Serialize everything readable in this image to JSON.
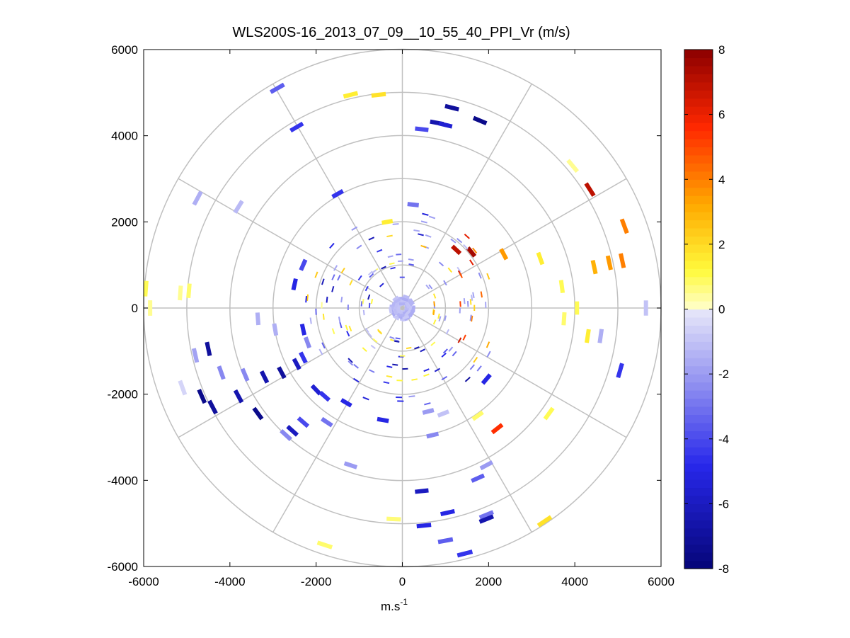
{
  "chart_data": {
    "type": "scatter",
    "subtype": "polar-ppi",
    "title": "WLS200S-16_2013_07_09__10_55_40_PPI_Vr (m/s)",
    "xlabel_base": "m.s",
    "xlabel_exp": "-1",
    "ylabel": "",
    "xlim": [
      -6000,
      6000
    ],
    "ylim": [
      -6000,
      6000
    ],
    "xticks": [
      -6000,
      -4000,
      -2000,
      0,
      2000,
      4000,
      6000
    ],
    "yticks": [
      -6000,
      -4000,
      -2000,
      0,
      2000,
      4000,
      6000
    ],
    "polar_grid": {
      "rings": [
        1000,
        2000,
        3000,
        4000,
        5000,
        6000
      ],
      "spoke_angles_deg": [
        0,
        30,
        60,
        90,
        120,
        150,
        180,
        210,
        240,
        270,
        300,
        330
      ]
    },
    "colorbar": {
      "min": -8,
      "max": 8,
      "ticks": [
        -8,
        -6,
        -4,
        -2,
        0,
        2,
        4,
        6,
        8
      ],
      "levels": 64,
      "colormap": "blue-white-yellow-red"
    },
    "points": [
      {
        "x": -2900,
        "y": 5100,
        "v": -3.5
      },
      {
        "x": -2450,
        "y": 4200,
        "v": -4.5
      },
      {
        "x": -1200,
        "y": 4950,
        "v": 1.5
      },
      {
        "x": -550,
        "y": 4950,
        "v": 1.8
      },
      {
        "x": 1150,
        "y": 4650,
        "v": -7.0
      },
      {
        "x": 1800,
        "y": 4350,
        "v": -7.5
      },
      {
        "x": 800,
        "y": 4300,
        "v": -6.5
      },
      {
        "x": 1000,
        "y": 4250,
        "v": -5.5
      },
      {
        "x": 450,
        "y": 4150,
        "v": -4.0
      },
      {
        "x": 3950,
        "y": 3300,
        "v": 0.5
      },
      {
        "x": 4350,
        "y": 2750,
        "v": 7.0
      },
      {
        "x": -4750,
        "y": 2550,
        "v": -1.5
      },
      {
        "x": -3800,
        "y": 2350,
        "v": -1.2
      },
      {
        "x": -1500,
        "y": 2650,
        "v": -4.5
      },
      {
        "x": 250,
        "y": 2400,
        "v": -3.0
      },
      {
        "x": -350,
        "y": 2000,
        "v": 1.5
      },
      {
        "x": 5150,
        "y": 1900,
        "v": 4.0
      },
      {
        "x": 5100,
        "y": 1100,
        "v": 4.0
      },
      {
        "x": 4450,
        "y": 950,
        "v": 3.0
      },
      {
        "x": 4800,
        "y": 1050,
        "v": 3.5
      },
      {
        "x": 3200,
        "y": 1150,
        "v": 1.5
      },
      {
        "x": 2350,
        "y": 1250,
        "v": 3.5
      },
      {
        "x": 1600,
        "y": 1300,
        "v": 7.5
      },
      {
        "x": 1250,
        "y": 1350,
        "v": 7.0
      },
      {
        "x": 3700,
        "y": 500,
        "v": 1.0
      },
      {
        "x": 4050,
        "y": 0,
        "v": 1.0
      },
      {
        "x": 3750,
        "y": -250,
        "v": 0.8
      },
      {
        "x": 4300,
        "y": -650,
        "v": 1.5
      },
      {
        "x": 4600,
        "y": -650,
        "v": -1.5
      },
      {
        "x": 5050,
        "y": -1450,
        "v": -4.5
      },
      {
        "x": 5650,
        "y": 0,
        "v": -1.0
      },
      {
        "x": -5950,
        "y": 450,
        "v": 1.0
      },
      {
        "x": -5850,
        "y": 0,
        "v": 0.5
      },
      {
        "x": -5150,
        "y": 350,
        "v": 0.5
      },
      {
        "x": -4950,
        "y": 400,
        "v": 0.8
      },
      {
        "x": -2300,
        "y": 1000,
        "v": -4.0
      },
      {
        "x": -2500,
        "y": 550,
        "v": -5.0
      },
      {
        "x": -3350,
        "y": -250,
        "v": -1.5
      },
      {
        "x": -2950,
        "y": -500,
        "v": -1.5
      },
      {
        "x": -2300,
        "y": -500,
        "v": -5.0
      },
      {
        "x": -2200,
        "y": -800,
        "v": -2.5
      },
      {
        "x": -4500,
        "y": -950,
        "v": -7.0
      },
      {
        "x": -4800,
        "y": -1100,
        "v": -1.8
      },
      {
        "x": -4200,
        "y": -1500,
        "v": -2.5
      },
      {
        "x": -3650,
        "y": -1550,
        "v": -2.5
      },
      {
        "x": -3200,
        "y": -1600,
        "v": -6.5
      },
      {
        "x": -2800,
        "y": -1500,
        "v": -7.0
      },
      {
        "x": -2450,
        "y": -1300,
        "v": -6.0
      },
      {
        "x": -2300,
        "y": -1150,
        "v": -4.5
      },
      {
        "x": -5100,
        "y": -1850,
        "v": -0.5
      },
      {
        "x": -4650,
        "y": -2050,
        "v": -7.5
      },
      {
        "x": -4400,
        "y": -2300,
        "v": -7.0
      },
      {
        "x": -3800,
        "y": -2050,
        "v": -6.5
      },
      {
        "x": -3350,
        "y": -2450,
        "v": -7.5
      },
      {
        "x": -2550,
        "y": -2850,
        "v": -6.0
      },
      {
        "x": -2700,
        "y": -2950,
        "v": -2.5
      },
      {
        "x": -2300,
        "y": -2650,
        "v": -4.0
      },
      {
        "x": -2000,
        "y": -1900,
        "v": -5.5
      },
      {
        "x": -1800,
        "y": -2050,
        "v": -4.5
      },
      {
        "x": -1750,
        "y": -2650,
        "v": -3.0
      },
      {
        "x": -1300,
        "y": -2200,
        "v": -5.0
      },
      {
        "x": -1200,
        "y": -3650,
        "v": -2.0
      },
      {
        "x": -450,
        "y": -2600,
        "v": -5.0
      },
      {
        "x": 600,
        "y": -2400,
        "v": -2.0
      },
      {
        "x": 950,
        "y": -2450,
        "v": -1.0
      },
      {
        "x": 700,
        "y": -2950,
        "v": -2.5
      },
      {
        "x": 1750,
        "y": -2500,
        "v": 0.8
      },
      {
        "x": 2200,
        "y": -2800,
        "v": 5.5
      },
      {
        "x": 3400,
        "y": -2450,
        "v": 1.0
      },
      {
        "x": 1950,
        "y": -1650,
        "v": -5.0
      },
      {
        "x": 1750,
        "y": -3950,
        "v": -3.5
      },
      {
        "x": 1950,
        "y": -3650,
        "v": -2.0
      },
      {
        "x": 450,
        "y": -4250,
        "v": -6.0
      },
      {
        "x": 1050,
        "y": -4750,
        "v": -5.0
      },
      {
        "x": 1950,
        "y": -4800,
        "v": -3.0
      },
      {
        "x": 1950,
        "y": -4900,
        "v": -6.5
      },
      {
        "x": 500,
        "y": -5050,
        "v": -5.0
      },
      {
        "x": -200,
        "y": -4900,
        "v": 0.7
      },
      {
        "x": 1000,
        "y": -5400,
        "v": -3.5
      },
      {
        "x": 1450,
        "y": -5700,
        "v": -4.5
      },
      {
        "x": -1800,
        "y": -5500,
        "v": 0.8
      },
      {
        "x": 3300,
        "y": -4950,
        "v": 1.8
      }
    ],
    "near_field_count": 240
  }
}
